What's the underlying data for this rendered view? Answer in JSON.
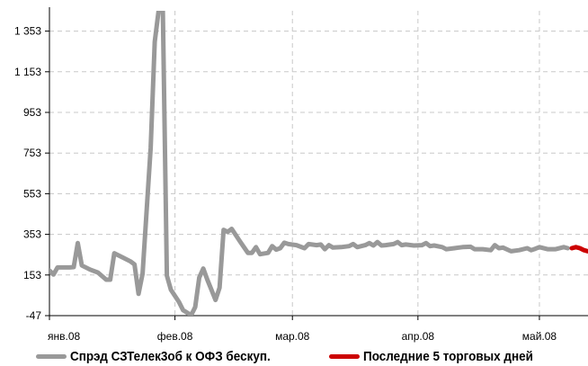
{
  "chart_data": {
    "type": "line",
    "title": "",
    "xlabel": "",
    "ylabel": "",
    "ylim": [
      -47,
      1453
    ],
    "y_ticks": [
      -47,
      153,
      353,
      553,
      753,
      953,
      1153,
      1353
    ],
    "y_tick_labels": [
      "-47",
      "153",
      "353",
      "553",
      "753",
      "953",
      "1 153",
      "1 353"
    ],
    "x_ticks": [
      {
        "day": 0,
        "label": "янв.08"
      },
      {
        "day": 31,
        "label": "фев.08"
      },
      {
        "day": 60,
        "label": "мар.08"
      },
      {
        "day": 91,
        "label": "апр.08"
      },
      {
        "day": 121,
        "label": "май.08"
      }
    ],
    "xlim": [
      0,
      133
    ],
    "grid": true,
    "legend_position": "bottom",
    "series": [
      {
        "name": "Спрэд СЗТелек3об к ОФЗ бескуп.",
        "color": "#999999",
        "points": [
          [
            0,
            175
          ],
          [
            1,
            155
          ],
          [
            2,
            190
          ],
          [
            5,
            190
          ],
          [
            6,
            192
          ],
          [
            7,
            310
          ],
          [
            8,
            200
          ],
          [
            10,
            180
          ],
          [
            12,
            165
          ],
          [
            14,
            130
          ],
          [
            15,
            130
          ],
          [
            16,
            260
          ],
          [
            18,
            240
          ],
          [
            20,
            220
          ],
          [
            21,
            205
          ],
          [
            22,
            60
          ],
          [
            23,
            160
          ],
          [
            25,
            780
          ],
          [
            26,
            1300
          ],
          [
            27,
            1460
          ],
          [
            28,
            1460
          ],
          [
            29,
            150
          ],
          [
            30,
            80
          ],
          [
            32,
            20
          ],
          [
            33,
            -20
          ],
          [
            35,
            -45
          ],
          [
            36,
            -5
          ],
          [
            37,
            140
          ],
          [
            38,
            185
          ],
          [
            39,
            130
          ],
          [
            40,
            80
          ],
          [
            41,
            30
          ],
          [
            42,
            90
          ],
          [
            43,
            375
          ],
          [
            44,
            365
          ],
          [
            45,
            380
          ],
          [
            47,
            320
          ],
          [
            49,
            262
          ],
          [
            50,
            262
          ],
          [
            51,
            290
          ],
          [
            52,
            255
          ],
          [
            54,
            262
          ],
          [
            55,
            295
          ],
          [
            56,
            278
          ],
          [
            57,
            285
          ],
          [
            58,
            312
          ],
          [
            59,
            305
          ],
          [
            61,
            300
          ],
          [
            63,
            285
          ],
          [
            64,
            305
          ],
          [
            66,
            300
          ],
          [
            67,
            303
          ],
          [
            68,
            280
          ],
          [
            69,
            300
          ],
          [
            70,
            288
          ],
          [
            72,
            290
          ],
          [
            74,
            295
          ],
          [
            75,
            305
          ],
          [
            76,
            290
          ],
          [
            78,
            300
          ],
          [
            79,
            310
          ],
          [
            80,
            298
          ],
          [
            81,
            315
          ],
          [
            82,
            298
          ],
          [
            83,
            300
          ],
          [
            85,
            305
          ],
          [
            86,
            315
          ],
          [
            87,
            300
          ],
          [
            88,
            303
          ],
          [
            90,
            298
          ],
          [
            92,
            300
          ],
          [
            93,
            310
          ],
          [
            94,
            295
          ],
          [
            95,
            298
          ],
          [
            97,
            290
          ],
          [
            98,
            280
          ],
          [
            100,
            285
          ],
          [
            102,
            290
          ],
          [
            104,
            292
          ],
          [
            105,
            280
          ],
          [
            107,
            280
          ],
          [
            109,
            275
          ],
          [
            110,
            300
          ],
          [
            111,
            285
          ],
          [
            112,
            288
          ],
          [
            114,
            270
          ],
          [
            116,
            275
          ],
          [
            118,
            285
          ],
          [
            119,
            275
          ],
          [
            120,
            282
          ],
          [
            121,
            290
          ],
          [
            123,
            280
          ],
          [
            125,
            280
          ],
          [
            127,
            290
          ],
          [
            128,
            285
          ]
        ]
      },
      {
        "name": "Последние 5 торговых дней",
        "color": "#cc0000",
        "points": [
          [
            129,
            285
          ],
          [
            130,
            290
          ],
          [
            131,
            285
          ],
          [
            132,
            275
          ],
          [
            133,
            270
          ]
        ]
      }
    ]
  }
}
